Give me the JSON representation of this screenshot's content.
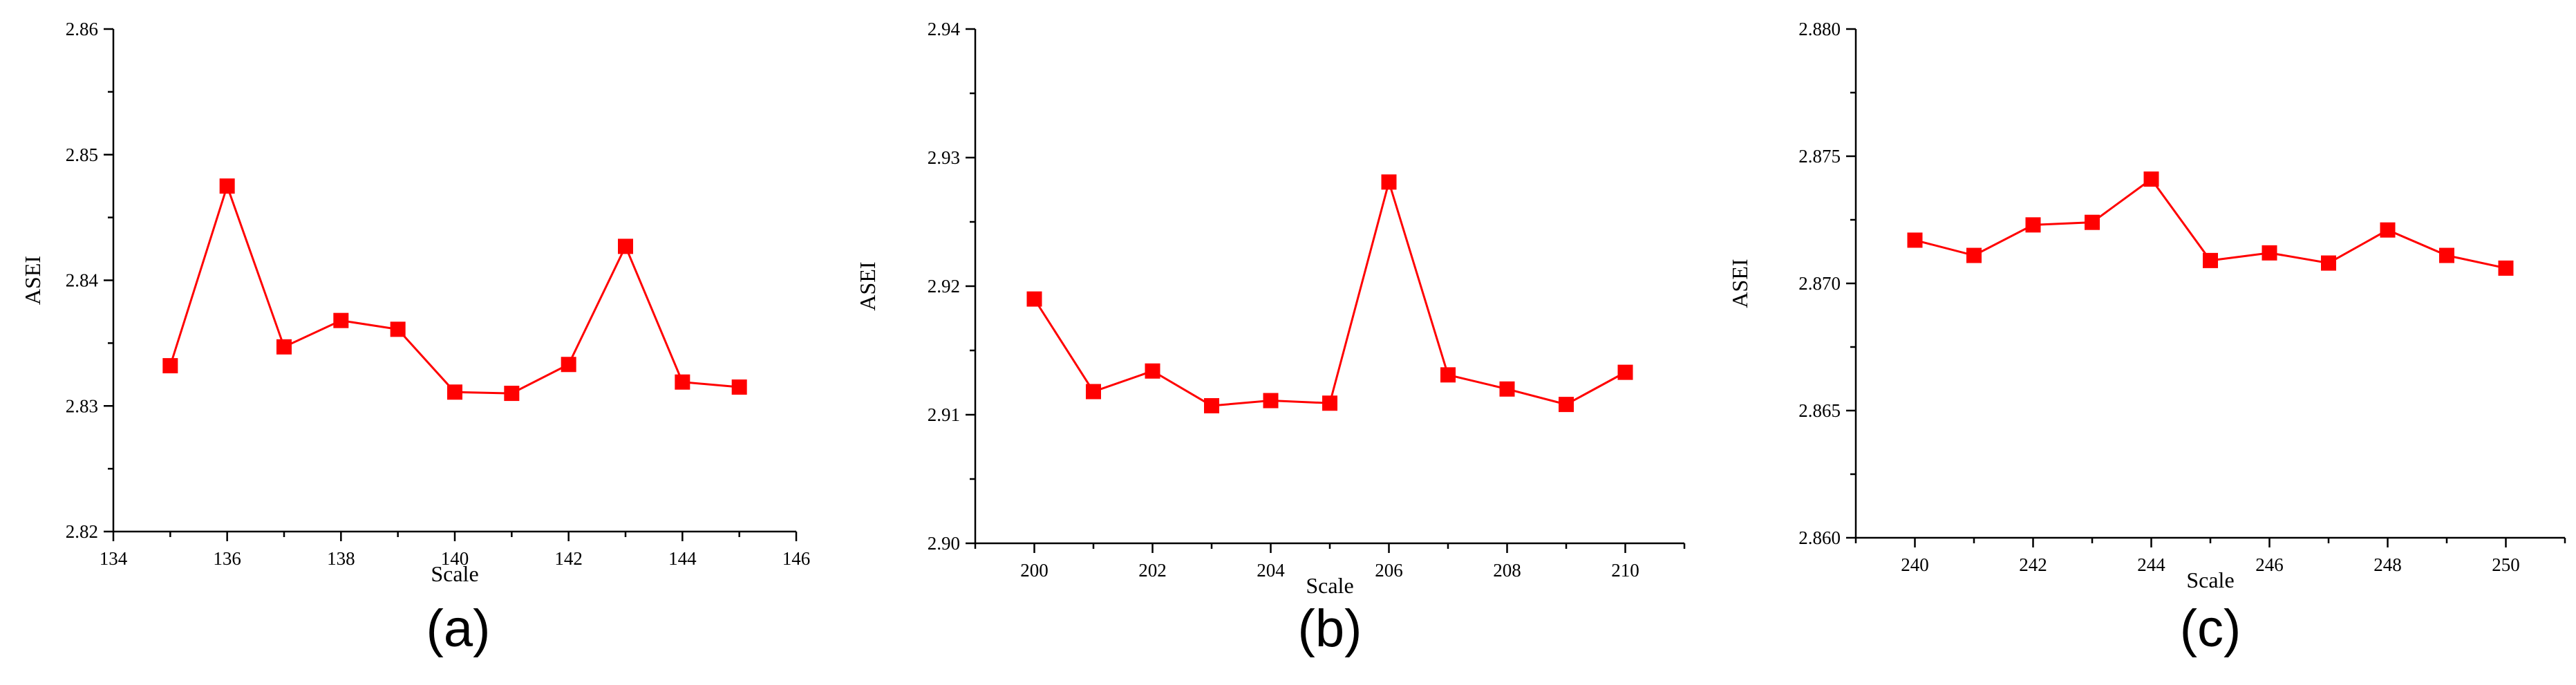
{
  "colors": {
    "series": "#ff0000",
    "axis": "#000000"
  },
  "chart_data": [
    {
      "type": "line",
      "caption": "(a)",
      "xlabel": "Scale",
      "ylabel": "ASEI",
      "xlim": [
        134,
        146
      ],
      "ylim": [
        2.82,
        2.86
      ],
      "x_ticks": [
        "134",
        "136",
        "138",
        "140",
        "142",
        "144",
        "146"
      ],
      "y_ticks": [
        "2.82",
        "2.83",
        "2.84",
        "2.85",
        "2.86"
      ],
      "x": [
        135,
        136,
        137,
        138,
        139,
        140,
        141,
        142,
        143,
        144,
        145
      ],
      "y": [
        2.8332,
        2.8475,
        2.8347,
        2.8368,
        2.8361,
        2.8311,
        2.831,
        2.8333,
        2.8427,
        2.8319,
        2.8315
      ],
      "marker": "square"
    },
    {
      "type": "line",
      "caption": "(b)",
      "xlabel": "Scale",
      "ylabel": "ASEI",
      "xlim": [
        199,
        211
      ],
      "ylim": [
        2.9,
        2.94
      ],
      "x_ticks": [
        "200",
        "202",
        "204",
        "206",
        "208",
        "210"
      ],
      "y_ticks": [
        "2.90",
        "2.91",
        "2.92",
        "2.93",
        "2.94"
      ],
      "x": [
        200,
        201,
        202,
        203,
        204,
        205,
        206,
        207,
        208,
        209,
        210
      ],
      "y": [
        2.919,
        2.9118,
        2.9134,
        2.9107,
        2.9111,
        2.9109,
        2.9281,
        2.9131,
        2.912,
        2.9108,
        2.9133
      ],
      "marker": "square"
    },
    {
      "type": "line",
      "caption": "(c)",
      "xlabel": "Scale",
      "ylabel": "ASEI",
      "xlim": [
        239,
        251
      ],
      "ylim": [
        2.86,
        2.88
      ],
      "x_ticks": [
        "240",
        "242",
        "244",
        "246",
        "248",
        "250"
      ],
      "y_ticks": [
        "2.860",
        "2.865",
        "2.870",
        "2.875",
        "2.880"
      ],
      "x": [
        240,
        241,
        242,
        243,
        244,
        245,
        246,
        247,
        248,
        249,
        250
      ],
      "y": [
        2.8717,
        2.8711,
        2.8723,
        2.8724,
        2.8741,
        2.8709,
        2.8712,
        2.8708,
        2.8721,
        2.8711,
        2.8706
      ],
      "marker": "square"
    }
  ]
}
